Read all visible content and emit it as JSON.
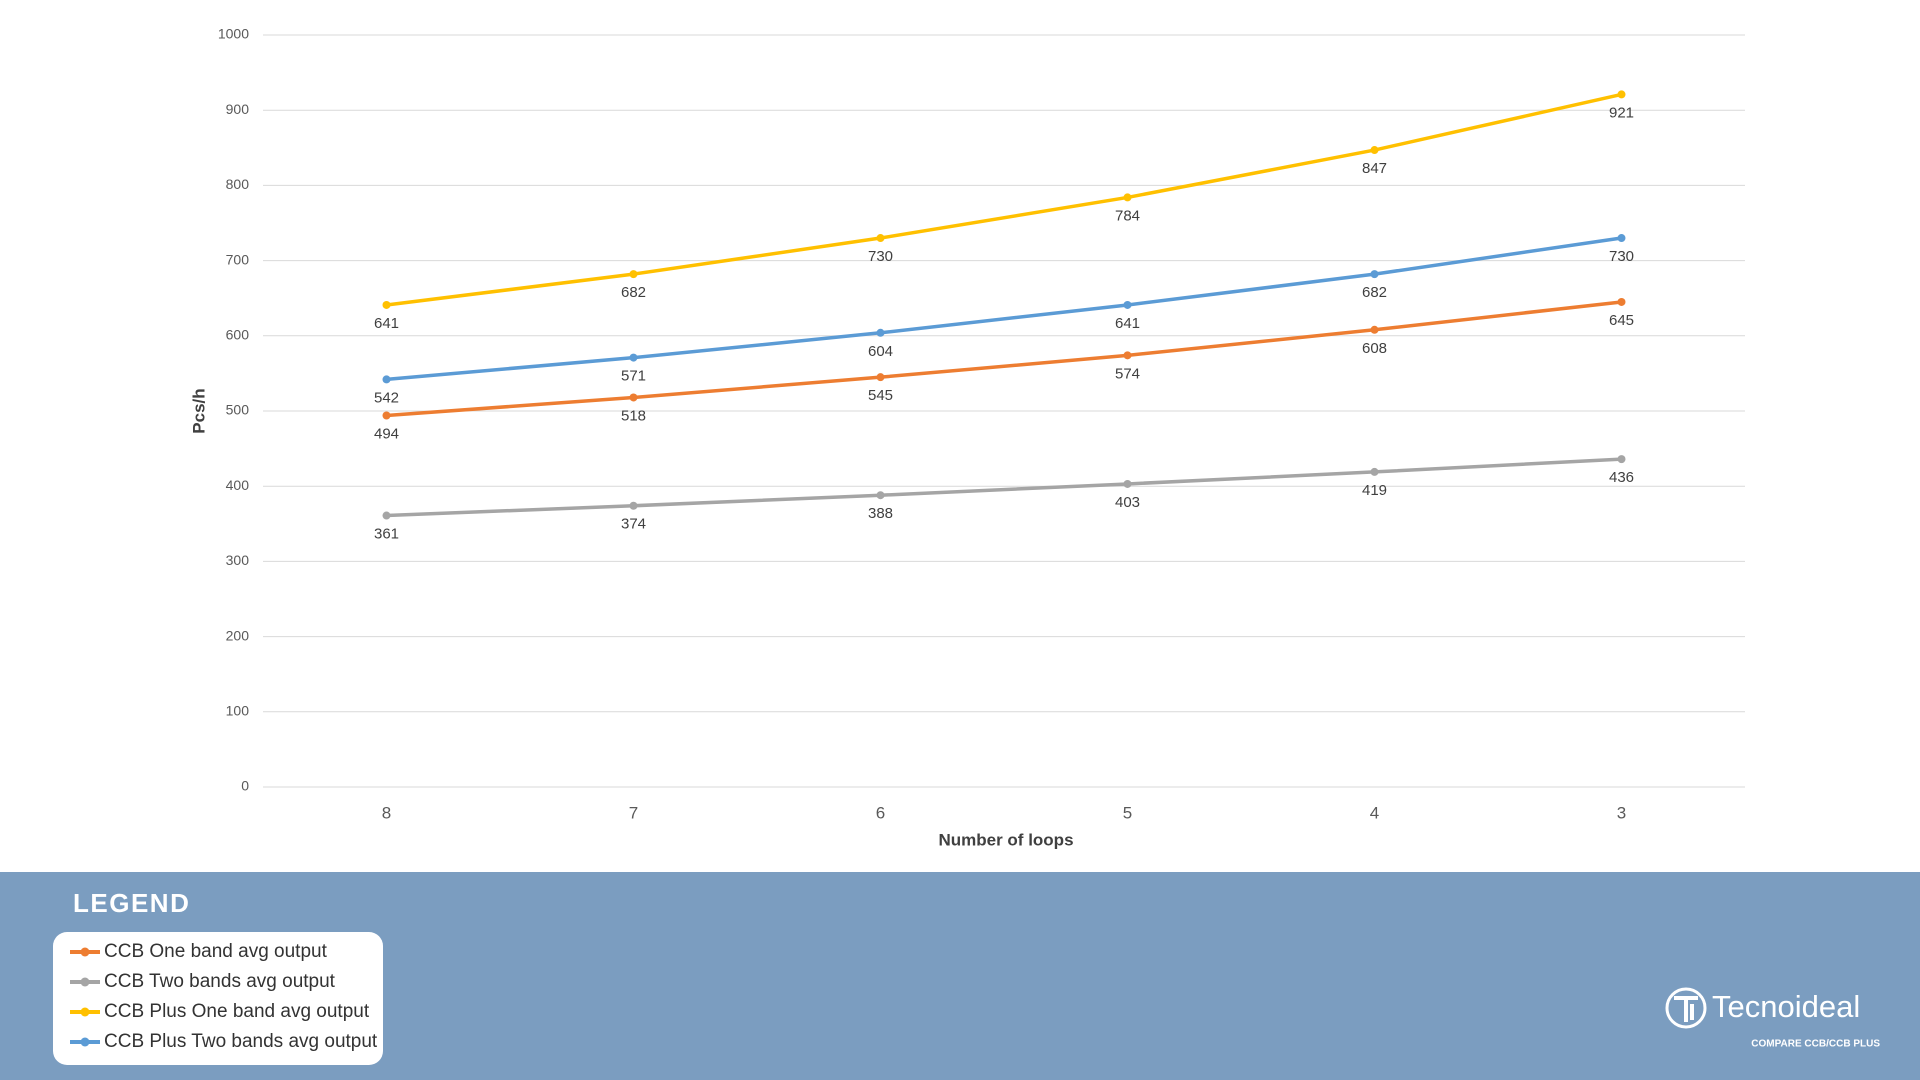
{
  "chart_data": {
    "type": "line",
    "categories": [
      "8",
      "7",
      "6",
      "5",
      "4",
      "3"
    ],
    "x_label": "Number of loops",
    "y_label": "Pcs/h",
    "ylim": [
      0,
      1000
    ],
    "yticks": [
      0,
      100,
      200,
      300,
      400,
      500,
      600,
      700,
      800,
      900,
      1000
    ],
    "grid": true,
    "legend_title": "LEGEND",
    "series": [
      {
        "name": "CCB One band avg output",
        "color": "#ed7d31",
        "values": [
          494,
          518,
          545,
          574,
          608,
          645
        ]
      },
      {
        "name": "CCB Two bands avg output",
        "color": "#a5a5a5",
        "values": [
          361,
          374,
          388,
          403,
          419,
          436
        ]
      },
      {
        "name": "CCB Plus One band avg output",
        "color": "#ffc000",
        "values": [
          641,
          682,
          730,
          784,
          847,
          921
        ]
      },
      {
        "name": "CCB Plus Two bands avg output",
        "color": "#5b9bd5",
        "values": [
          542,
          571,
          604,
          641,
          682,
          730
        ]
      }
    ]
  },
  "brand": {
    "name": "Tecnoideal",
    "subtitle": "COMPARE CCB/CCB PLUS"
  }
}
